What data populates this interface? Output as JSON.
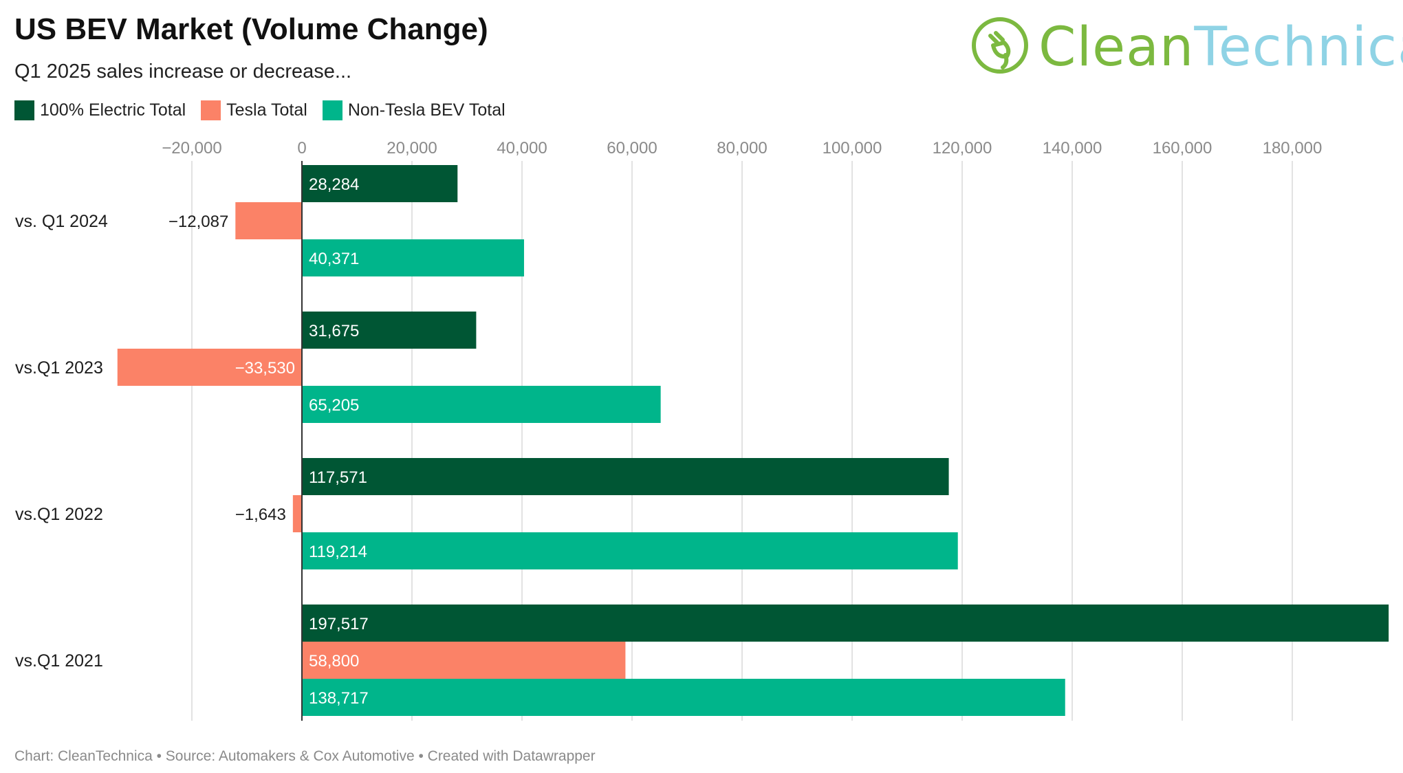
{
  "header": {
    "title": "US BEV Market (Volume Change)",
    "subtitle": "Q1 2025 sales increase or decrease..."
  },
  "logo": {
    "text_part1": "Clean",
    "text_part2": "Technica",
    "icon": "plug-leaf-icon"
  },
  "colors": {
    "electric_total": "#005634",
    "tesla_total": "#fb8267",
    "non_tesla_total": "#00b58b",
    "grid": "#e2e2e2",
    "axis_text": "#8a8a8a"
  },
  "footer": {
    "text": "Chart: CleanTechnica • Source: Automakers & Cox Automotive • Created with Datawrapper"
  },
  "chart_data": {
    "type": "bar",
    "orientation": "horizontal",
    "title": "US BEV Market (Volume Change)",
    "subtitle": "Q1 2025 sales increase or decrease...",
    "categories": [
      "vs. Q1 2024",
      "vs.Q1 2023",
      "vs.Q1 2022",
      "vs.Q1 2021"
    ],
    "series": [
      {
        "name": "100% Electric Total",
        "values": [
          28284,
          31675,
          117571,
          197517
        ],
        "labels": [
          "28,284",
          "31,675",
          "117,571",
          "197,517"
        ]
      },
      {
        "name": "Tesla Total",
        "values": [
          -12087,
          -33530,
          -1643,
          58800
        ],
        "labels": [
          "−12,087",
          "−33,530",
          "−1,643",
          "58,800"
        ]
      },
      {
        "name": "Non-Tesla BEV Total",
        "values": [
          40371,
          65205,
          119214,
          138717
        ],
        "labels": [
          "40,371",
          "65,205",
          "119,214",
          "138,717"
        ]
      }
    ],
    "ticks": [
      -20000,
      0,
      20000,
      40000,
      60000,
      80000,
      100000,
      120000,
      140000,
      160000,
      180000
    ],
    "tick_labels": [
      "−20,000",
      "0",
      "20,000",
      "40,000",
      "60,000",
      "80,000",
      "100,000",
      "120,000",
      "140,000",
      "160,000",
      "180,000"
    ],
    "xlim": [
      -33530,
      197517
    ],
    "grid": true,
    "legend_position": "top-left",
    "axis_position": "top"
  }
}
